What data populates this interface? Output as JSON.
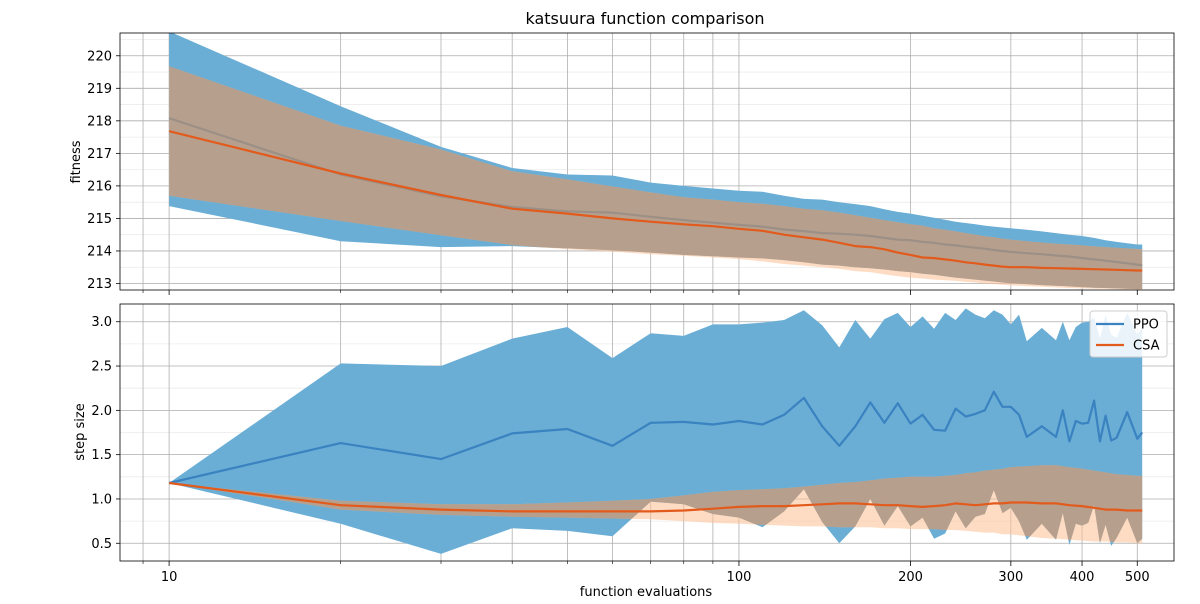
{
  "chart_data": {
    "type": "line",
    "title": "katsuura function comparison",
    "xlabel": "function evaluations",
    "xscale": "log",
    "xlim": [
      8.2,
      580
    ],
    "x_ticks": [
      10,
      100,
      200,
      300,
      400,
      500
    ],
    "colors": {
      "PPO": "#3a82c0",
      "CSA": "#e25a1c",
      "PPO_band": "#6aaed6",
      "CSA_band": "#fdbf94",
      "overlap": "#b6a08d",
      "PPO_overlap_line": "#9c8f86"
    },
    "grid": true,
    "legend": {
      "location": "top-right",
      "panel": "bottom",
      "entries": [
        "PPO",
        "CSA"
      ]
    },
    "panels": [
      {
        "name": "fitness",
        "ylabel": "fitness",
        "ylim": [
          212.8,
          220.7
        ],
        "y_ticks": [
          213,
          214,
          215,
          216,
          217,
          218,
          219,
          220
        ],
        "x": [
          10,
          20,
          30,
          40,
          50,
          60,
          70,
          80,
          90,
          100,
          110,
          120,
          130,
          140,
          150,
          160,
          170,
          180,
          190,
          200,
          210,
          220,
          230,
          240,
          250,
          260,
          270,
          280,
          290,
          300,
          320,
          340,
          360,
          380,
          400,
          420,
          440,
          460,
          480,
          500,
          510
        ],
        "series": [
          {
            "name": "PPO",
            "mean": [
              218.08,
              216.35,
              215.68,
              215.35,
              215.22,
              215.18,
              215.05,
              214.95,
              214.87,
              214.8,
              214.75,
              214.66,
              214.61,
              214.55,
              214.53,
              214.5,
              214.46,
              214.4,
              214.35,
              214.33,
              214.28,
              214.25,
              214.2,
              214.17,
              214.13,
              214.1,
              214.07,
              214.03,
              214.0,
              213.97,
              213.93,
              213.9,
              213.86,
              213.83,
              213.78,
              213.74,
              213.7,
              213.66,
              213.62,
              213.58,
              213.56
            ],
            "lower": [
              215.38,
              214.3,
              214.12,
              214.15,
              214.08,
              214.02,
              213.95,
              213.88,
              213.84,
              213.8,
              213.77,
              213.72,
              213.65,
              213.58,
              213.55,
              213.5,
              213.47,
              213.43,
              213.38,
              213.35,
              213.3,
              213.27,
              213.22,
              213.18,
              213.15,
              213.12,
              213.09,
              213.06,
              213.03,
              213.01,
              212.98,
              212.95,
              212.93,
              212.91,
              212.89,
              212.87,
              212.86,
              212.85,
              212.84,
              212.83,
              212.83
            ],
            "upper": [
              220.75,
              218.45,
              217.2,
              216.55,
              216.35,
              216.32,
              216.1,
              216.0,
              215.92,
              215.85,
              215.82,
              215.7,
              215.6,
              215.58,
              215.5,
              215.44,
              215.38,
              215.28,
              215.2,
              215.15,
              215.08,
              215.02,
              214.96,
              214.9,
              214.86,
              214.82,
              214.78,
              214.75,
              214.72,
              214.7,
              214.65,
              214.6,
              214.55,
              214.5,
              214.46,
              214.4,
              214.33,
              214.28,
              214.24,
              214.2,
              214.2
            ]
          },
          {
            "name": "CSA",
            "mean": [
              217.68,
              216.38,
              215.72,
              215.3,
              215.15,
              215.0,
              214.9,
              214.82,
              214.76,
              214.68,
              214.62,
              214.5,
              214.42,
              214.35,
              214.25,
              214.15,
              214.12,
              214.05,
              213.95,
              213.88,
              213.8,
              213.78,
              213.74,
              213.7,
              213.65,
              213.62,
              213.58,
              213.55,
              213.52,
              213.5,
              213.5,
              213.48,
              213.47,
              213.46,
              213.45,
              213.44,
              213.43,
              213.42,
              213.41,
              213.4,
              213.4
            ],
            "lower": [
              215.7,
              214.92,
              214.48,
              214.18,
              214.05,
              213.98,
              213.9,
              213.85,
              213.8,
              213.75,
              213.68,
              213.6,
              213.55,
              213.5,
              213.45,
              213.38,
              213.35,
              213.28,
              213.22,
              213.18,
              213.15,
              213.12,
              213.1,
              213.08,
              213.05,
              213.03,
              213.0,
              212.98,
              212.96,
              212.94,
              212.92,
              212.9,
              212.88,
              212.86,
              212.85,
              212.84,
              212.83,
              212.82,
              212.81,
              212.8,
              212.8
            ],
            "upper": [
              219.68,
              217.85,
              217.12,
              216.45,
              216.2,
              215.98,
              215.8,
              215.65,
              215.58,
              215.5,
              215.45,
              215.38,
              215.3,
              215.25,
              215.18,
              215.1,
              215.02,
              214.95,
              214.88,
              214.82,
              214.78,
              214.7,
              214.65,
              214.6,
              214.55,
              214.5,
              214.45,
              214.42,
              214.38,
              214.35,
              214.3,
              214.26,
              214.22,
              214.2,
              214.17,
              214.14,
              214.12,
              214.1,
              214.08,
              214.06,
              214.05
            ]
          }
        ]
      },
      {
        "name": "step_size",
        "ylabel": "step size",
        "ylim": [
          0.3,
          3.2
        ],
        "y_ticks": [
          0.5,
          1.0,
          1.5,
          2.0,
          2.5,
          3.0
        ],
        "y_tick_labels": [
          "0.5",
          "1.0",
          "1.5",
          "2.0",
          "2.5",
          "3.0"
        ],
        "series": [
          {
            "name": "PPO",
            "x": [
              10,
              20,
              30,
              40,
              50,
              60,
              70,
              80,
              90,
              100,
              110,
              120,
              130,
              140,
              150,
              160,
              170,
              180,
              190,
              200,
              210,
              220,
              230,
              240,
              250,
              260,
              270,
              280,
              290,
              300,
              310,
              320,
              340,
              360,
              370,
              380,
              390,
              400,
              410,
              420,
              430,
              440,
              450,
              460,
              480,
              500,
              510
            ],
            "mean": [
              1.18,
              1.63,
              1.45,
              1.74,
              1.79,
              1.6,
              1.86,
              1.87,
              1.84,
              1.88,
              1.84,
              1.95,
              2.14,
              1.82,
              1.6,
              1.82,
              2.09,
              1.86,
              2.08,
              1.85,
              1.95,
              1.78,
              1.77,
              2.02,
              1.93,
              1.96,
              2.0,
              2.21,
              2.04,
              2.04,
              1.95,
              1.7,
              1.82,
              1.7,
              2.0,
              1.65,
              1.88,
              1.85,
              1.86,
              2.11,
              1.65,
              1.94,
              1.66,
              1.69,
              1.98,
              1.68,
              1.75
            ],
            "lower": [
              1.18,
              0.72,
              0.38,
              0.67,
              0.64,
              0.58,
              0.97,
              0.94,
              0.83,
              0.79,
              0.68,
              0.86,
              1.11,
              0.74,
              0.5,
              0.69,
              1.0,
              0.7,
              0.92,
              0.69,
              0.79,
              0.55,
              0.61,
              0.86,
              0.67,
              0.8,
              0.83,
              1.1,
              0.84,
              0.9,
              0.75,
              0.54,
              0.72,
              0.54,
              0.84,
              0.48,
              0.72,
              0.7,
              0.73,
              0.93,
              0.5,
              0.71,
              0.47,
              0.56,
              0.79,
              0.5,
              0.55
            ],
            "upper": [
              1.18,
              2.53,
              2.5,
              2.81,
              2.94,
              2.59,
              2.87,
              2.84,
              2.97,
              2.97,
              2.99,
              3.02,
              3.13,
              2.96,
              2.71,
              3.02,
              2.81,
              3.03,
              3.1,
              2.94,
              3.06,
              2.92,
              3.1,
              3.02,
              3.15,
              3.08,
              3.04,
              3.13,
              3.08,
              2.97,
              3.08,
              2.78,
              2.93,
              2.79,
              3.0,
              2.79,
              2.94,
              2.99,
              3.0,
              3.05,
              2.81,
              3.07,
              2.85,
              2.82,
              3.1,
              2.85,
              2.94
            ]
          },
          {
            "name": "CSA",
            "x": [
              10,
              20,
              30,
              40,
              50,
              60,
              70,
              80,
              90,
              100,
              110,
              120,
              130,
              140,
              150,
              160,
              170,
              180,
              190,
              200,
              210,
              220,
              230,
              240,
              250,
              260,
              270,
              280,
              290,
              300,
              320,
              340,
              360,
              380,
              400,
              420,
              440,
              460,
              480,
              500,
              510
            ],
            "mean": [
              1.18,
              0.93,
              0.88,
              0.86,
              0.86,
              0.86,
              0.86,
              0.87,
              0.89,
              0.91,
              0.92,
              0.92,
              0.93,
              0.94,
              0.95,
              0.95,
              0.94,
              0.93,
              0.93,
              0.92,
              0.91,
              0.92,
              0.93,
              0.95,
              0.94,
              0.93,
              0.94,
              0.95,
              0.95,
              0.96,
              0.96,
              0.95,
              0.95,
              0.93,
              0.92,
              0.9,
              0.88,
              0.88,
              0.87,
              0.87,
              0.87
            ],
            "lower": [
              1.18,
              0.88,
              0.82,
              0.8,
              0.79,
              0.78,
              0.77,
              0.75,
              0.73,
              0.72,
              0.71,
              0.7,
              0.69,
              0.69,
              0.68,
              0.68,
              0.68,
              0.67,
              0.67,
              0.66,
              0.66,
              0.66,
              0.65,
              0.65,
              0.64,
              0.63,
              0.62,
              0.62,
              0.6,
              0.6,
              0.58,
              0.56,
              0.55,
              0.54,
              0.53,
              0.52,
              0.52,
              0.51,
              0.51,
              0.5,
              0.5
            ],
            "upper": [
              1.18,
              0.98,
              0.94,
              0.94,
              0.96,
              0.98,
              1.0,
              1.04,
              1.08,
              1.1,
              1.11,
              1.12,
              1.14,
              1.16,
              1.18,
              1.19,
              1.21,
              1.23,
              1.24,
              1.25,
              1.25,
              1.25,
              1.26,
              1.27,
              1.29,
              1.3,
              1.32,
              1.33,
              1.34,
              1.36,
              1.37,
              1.38,
              1.38,
              1.36,
              1.34,
              1.32,
              1.3,
              1.28,
              1.27,
              1.26,
              1.26
            ]
          }
        ]
      }
    ]
  }
}
